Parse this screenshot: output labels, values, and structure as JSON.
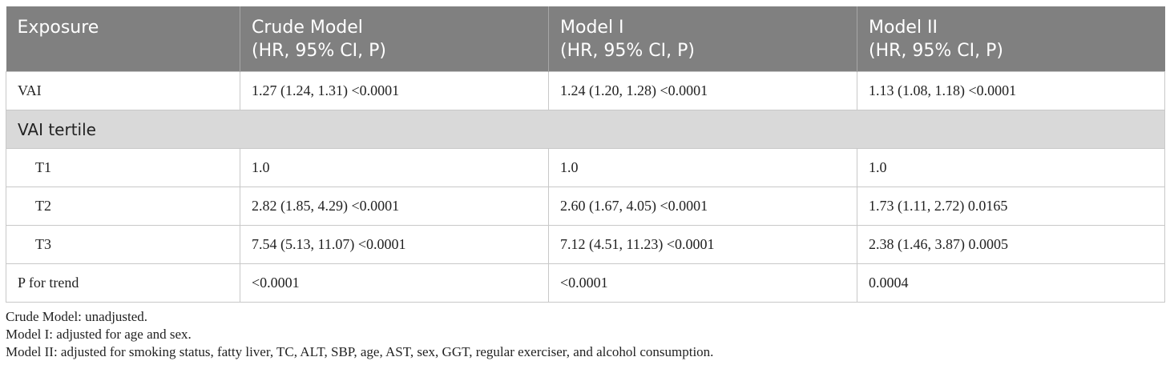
{
  "table": {
    "headers": [
      {
        "line1": "Exposure",
        "line2": ""
      },
      {
        "line1": "Crude Model",
        "line2": "(HR, 95% CI, P)"
      },
      {
        "line1": "Model I",
        "line2": "(HR, 95% CI, P)"
      },
      {
        "line1": "Model II",
        "line2": "(HR, 95% CI, P)"
      }
    ],
    "rows": [
      {
        "type": "data",
        "cells": [
          "VAI",
          "1.27 (1.24, 1.31) <0.0001",
          "1.24 (1.20, 1.28) <0.0001",
          "1.13 (1.08, 1.18) <0.0001"
        ]
      },
      {
        "type": "section",
        "label": "VAI tertile"
      },
      {
        "type": "sub",
        "cells": [
          "T1",
          "1.0",
          "1.0",
          "1.0"
        ]
      },
      {
        "type": "sub",
        "cells": [
          "T2",
          "2.82 (1.85, 4.29) <0.0001",
          "2.60 (1.67, 4.05) <0.0001",
          "1.73 (1.11, 2.72) 0.0165"
        ]
      },
      {
        "type": "sub",
        "cells": [
          "T3",
          "7.54 (5.13, 11.07) <0.0001",
          "7.12 (4.51, 11.23) <0.0001",
          "2.38 (1.46, 3.87) 0.0005"
        ]
      },
      {
        "type": "data",
        "cells": [
          "P for trend",
          "<0.0001",
          "<0.0001",
          "0.0004"
        ]
      }
    ]
  },
  "footnotes": [
    "Crude Model: unadjusted.",
    "Model I: adjusted for age and sex.",
    "Model II: adjusted for smoking status, fatty liver, TC, ALT, SBP, age, AST, sex, GGT, regular exerciser, and alcohol consumption."
  ]
}
